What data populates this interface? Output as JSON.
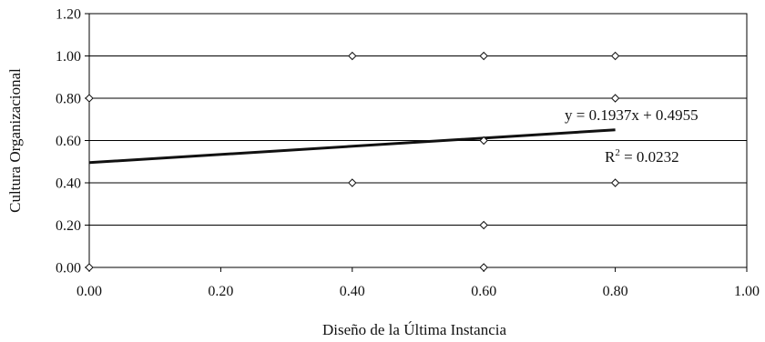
{
  "chart_data": {
    "type": "scatter",
    "title": "",
    "xlabel": "Diseño de la Última Instancia",
    "ylabel": "Cultura Organizacional",
    "xlim": [
      0,
      1
    ],
    "ylim": [
      0,
      1.2
    ],
    "xticks": [
      "0.00",
      "0.20",
      "0.40",
      "0.60",
      "0.80",
      "1.00"
    ],
    "yticks": [
      "0.00",
      "0.20",
      "0.40",
      "0.60",
      "0.80",
      "1.00",
      "1.20"
    ],
    "grid": "horizontal",
    "legend": "none",
    "points": [
      {
        "x": 0.0,
        "y": 0.8
      },
      {
        "x": 0.0,
        "y": 0.0
      },
      {
        "x": 0.4,
        "y": 1.0
      },
      {
        "x": 0.4,
        "y": 0.4
      },
      {
        "x": 0.6,
        "y": 1.0
      },
      {
        "x": 0.6,
        "y": 0.6
      },
      {
        "x": 0.6,
        "y": 0.2
      },
      {
        "x": 0.6,
        "y": 0.0
      },
      {
        "x": 0.8,
        "y": 1.0
      },
      {
        "x": 0.8,
        "y": 0.8
      },
      {
        "x": 0.8,
        "y": 0.4
      }
    ],
    "trendline": {
      "slope": 0.1937,
      "intercept": 0.4955,
      "x_range": [
        0,
        0.8
      ],
      "equation_label": "y = 0.1937x + 0.4955",
      "r2_label_prefix": "R",
      "r2_label_sup": "2",
      "r2_label_suffix": " = 0.0232"
    },
    "colors": {
      "line": "#111111",
      "marker": "#111111",
      "grid": "#000000"
    }
  }
}
